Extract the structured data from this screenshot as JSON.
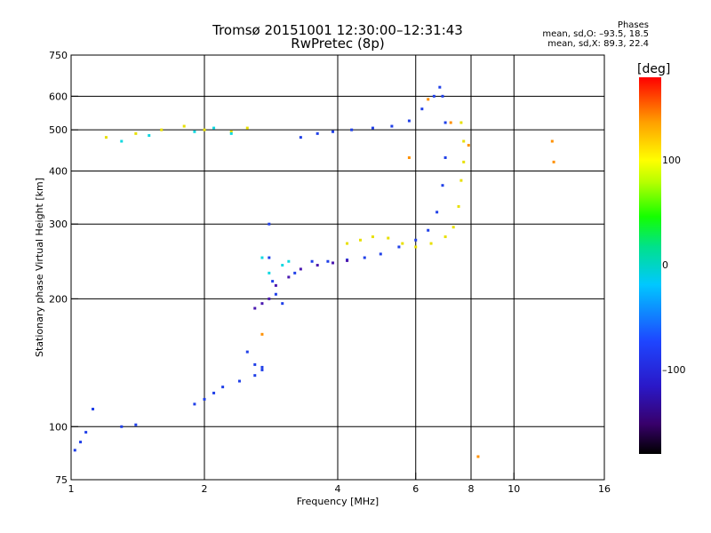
{
  "header": {
    "line1": "Tromsø 20151001 12:30:00–12:31:43",
    "line2": "RwPretec (8p)"
  },
  "phase_info": {
    "title": "Phases",
    "mean_o": "mean, sd,O: –93.5, 18.5",
    "mean_x": "mean, sd,X:  89.3, 22.4"
  },
  "colorbar": {
    "unit": "[deg]",
    "ticks": [
      {
        "label": "100",
        "value": 100
      },
      {
        "label": "0",
        "value": 0
      },
      {
        "label": "–100",
        "value": -100
      }
    ],
    "range": [
      -180,
      180
    ]
  },
  "chart_data": {
    "type": "scatter",
    "title": "Tromsø 20151001 12:30:00–12:31:43",
    "subtitle": "RwPretec (8p)",
    "xlabel": "Frequency [MHz]",
    "ylabel": "Stationary phase Virtual Height [km]",
    "x_scale": "log",
    "y_scale": "log",
    "xlim": [
      1,
      16
    ],
    "ylim": [
      75,
      750
    ],
    "x_ticks": [
      1,
      2,
      4,
      6,
      8,
      10,
      16
    ],
    "y_ticks": [
      75,
      100,
      200,
      300,
      400,
      500,
      600,
      750
    ],
    "grid_x": [
      2,
      4,
      6,
      8,
      10
    ],
    "grid_y": [
      100,
      200,
      300,
      400,
      500,
      600
    ],
    "series": [
      {
        "mode": "O",
        "color": "#2040e8",
        "x": [
          1.02,
          1.05,
          1.08,
          1.12,
          1.3,
          1.4,
          1.9,
          2.0,
          2.1,
          2.2,
          2.4,
          2.6,
          2.7,
          2.8,
          2.8,
          2.85,
          2.9,
          3.0,
          3.2,
          3.5,
          3.8,
          4.2,
          4.6,
          5.0,
          5.5,
          6.0,
          6.4,
          6.7,
          6.9,
          7.0,
          7.0,
          6.9,
          6.8,
          3.3,
          3.6,
          3.9,
          4.3,
          4.8,
          5.3,
          5.8,
          6.2,
          6.6,
          2.5,
          2.6,
          2.7
        ],
        "y": [
          88,
          92,
          97,
          110,
          100,
          101,
          113,
          116,
          120,
          124,
          128,
          132,
          136,
          300,
          250,
          220,
          205,
          195,
          230,
          245,
          245,
          247,
          250,
          255,
          265,
          275,
          290,
          320,
          370,
          430,
          520,
          600,
          630,
          480,
          490,
          495,
          500,
          505,
          510,
          525,
          560,
          600,
          150,
          140,
          138
        ]
      },
      {
        "mode": "X",
        "color": "#e8e000",
        "x": [
          1.2,
          1.4,
          1.6,
          1.8,
          2.0,
          2.3,
          2.5,
          4.2,
          4.5,
          4.8,
          5.2,
          5.6,
          6.0,
          6.5,
          7.0,
          7.3,
          7.5,
          7.6,
          7.7,
          7.7,
          7.6
        ],
        "y": [
          480,
          490,
          500,
          510,
          500,
          495,
          505,
          270,
          275,
          280,
          278,
          270,
          265,
          270,
          280,
          295,
          330,
          380,
          420,
          470,
          520
        ]
      },
      {
        "mode": "X-cyan",
        "color": "#10d8e0",
        "x": [
          1.3,
          1.5,
          1.9,
          2.1,
          2.3,
          2.7,
          2.8,
          3.0,
          3.1
        ],
        "y": [
          470,
          485,
          495,
          505,
          490,
          250,
          230,
          240,
          245
        ]
      },
      {
        "mode": "X-orange",
        "color": "#ff9000",
        "x": [
          2.7,
          5.8,
          6.4,
          7.2,
          7.9,
          8.3,
          12.2,
          12.3
        ],
        "y": [
          165,
          430,
          590,
          520,
          460,
          85,
          470,
          420
        ]
      },
      {
        "mode": "X-violet",
        "color": "#4a18b0",
        "x": [
          2.6,
          2.7,
          2.8,
          2.9,
          3.1,
          3.3,
          3.6,
          3.9,
          4.2
        ],
        "y": [
          190,
          195,
          200,
          215,
          225,
          235,
          240,
          243,
          246
        ]
      }
    ]
  }
}
